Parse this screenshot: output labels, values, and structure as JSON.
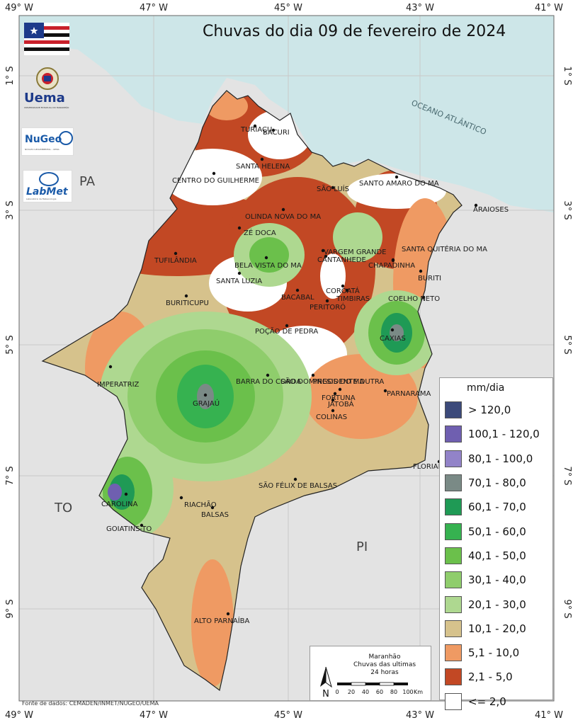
{
  "title": "Chuvas do dia 09 de fevereiro de 2024",
  "axes": {
    "top_labels": [
      "49° W",
      "47° W",
      "45° W",
      "43° W",
      "41° W"
    ],
    "bottom_labels": [
      "49° W",
      "47° W",
      "45° W",
      "43° W",
      "41° W"
    ],
    "left_labels": [
      "1° S",
      "3° S",
      "5° S",
      "7° S",
      "9° S"
    ],
    "right_labels": [
      "1° S",
      "3° S",
      "5° S",
      "7° S",
      "9° S"
    ]
  },
  "regions": {
    "pa": "PA",
    "to": "TO",
    "pi": "PI",
    "ocean": "OCEANO ATLÂNTICO"
  },
  "cities": [
    "TURIAÇU",
    "BACURI",
    "SANTA HELENA",
    "CENTRO DO GUILHERME",
    "SÃO LUÍS",
    "SANTO AMARO DO MA",
    "ARAIOSES",
    "OLINDA NOVA DO MA",
    "ZÉ DOCA",
    "VARGEM GRANDE",
    "SANTA QUITÉRIA DO MA",
    "CANTANHEDE",
    "CHAPADINHA",
    "TUFILÂNDIA",
    "BELA VISTA DO MA",
    "BURITI",
    "SANTA LUZIA",
    "COROATÁ",
    "BACABAL",
    "TIMBIRAS",
    "COELHO NETO",
    "PERITORÓ",
    "BURITICUPU",
    "POÇÃO DE PEDRA",
    "CAXIAS",
    "IMPERATRIZ",
    "BARRA DO CORDA",
    "SÃO DOMINGOS DO MA",
    "PRESIDENTE DUTRA",
    "PARNARAMA",
    "FORTUNA",
    "GRAJAÚ",
    "JATOBÁ",
    "COLINAS",
    "FLORIANO-PI",
    "SÃO FÉLIX DE BALSAS",
    "CAROLINA",
    "RIACHÃO",
    "BALSAS",
    "GOIATINS-TO",
    "ALTO PARNAÍBA"
  ],
  "legend": {
    "unit": "mm/dia",
    "items": [
      {
        "label": "> 120,0",
        "color": "#3c4a7a"
      },
      {
        "label": "100,1 - 120,0",
        "color": "#6f5fb0"
      },
      {
        "label": "80,1 - 100,0",
        "color": "#9283c8"
      },
      {
        "label": "70,1 - 80,0",
        "color": "#7a8a86"
      },
      {
        "label": "60,1 - 70,0",
        "color": "#1f9a55"
      },
      {
        "label": "50,1 - 60,0",
        "color": "#36b250"
      },
      {
        "label": "40,1 - 50,0",
        "color": "#6bc04b"
      },
      {
        "label": "30,1 - 40,0",
        "color": "#8fcd6c"
      },
      {
        "label": "20,1 - 30,0",
        "color": "#aed890"
      },
      {
        "label": "10,1 - 20,0",
        "color": "#d6c28c"
      },
      {
        "label": "5,1 - 10,0",
        "color": "#ef9a63"
      },
      {
        "label": "2,1 - 5,0",
        "color": "#c24824"
      },
      {
        "label": "<= 2,0",
        "color": "#ffffff"
      }
    ]
  },
  "info": {
    "line1": "Maranhão",
    "line2": "Chuvas das ultimas",
    "line3": "24 horas",
    "north": "N"
  },
  "scale": {
    "ticks": [
      "0",
      "20",
      "40",
      "60",
      "80",
      "100"
    ],
    "unit": "Km"
  },
  "source": "Fonte de dados: CEMADEN/INMET/NUGEO/UEMA",
  "logos": {
    "uema": "Uema",
    "uema_sub": "UNIVERSIDADE ESTADUAL DO MARANHÃO",
    "nugeo": "NuGeo",
    "nugeo_sub": "NÚCLEO GEOAMBIENTAL - UEMA",
    "labmet": "LabMet",
    "labmet_sub": "Laboratório de Meteorologia"
  },
  "colors": {
    "ocean": "#cde6e8",
    "land": "#e3e3e3",
    "grid": "#c9c9c9"
  }
}
